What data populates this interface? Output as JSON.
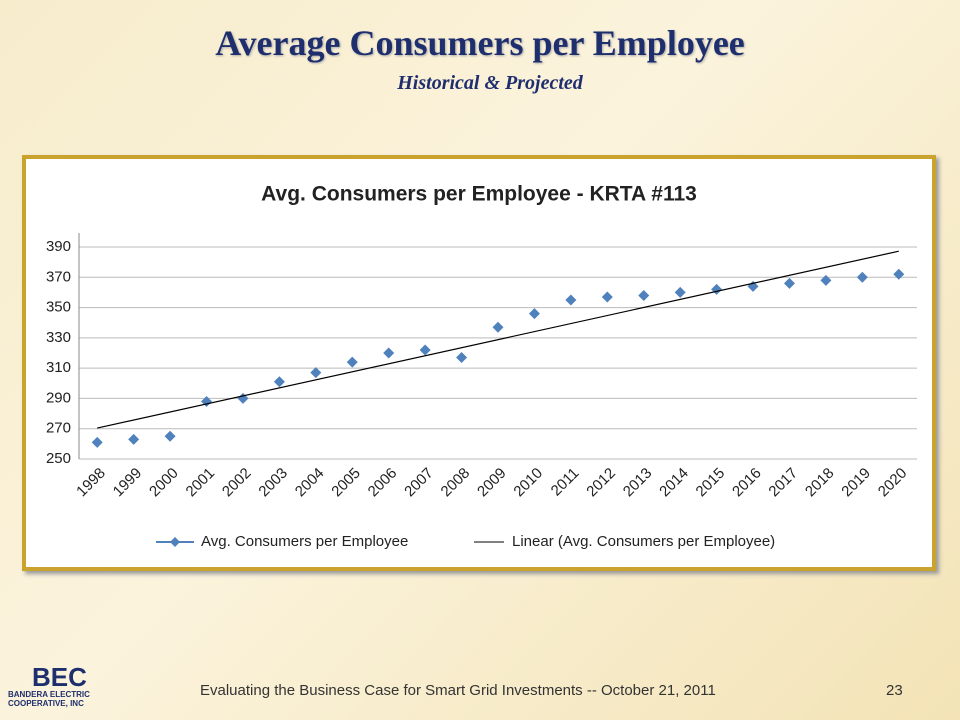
{
  "slide": {
    "title": "Average Consumers per Employee",
    "subtitle": "Historical & Projected",
    "footer": "Evaluating the Business Case for Smart Grid Investments -- October 21, 2011",
    "page": "23",
    "logo": {
      "mark": "BEC",
      "line1": "BANDERA ELECTRIC",
      "line2": "COOPERATIVE, INC"
    }
  },
  "chart_data": {
    "type": "scatter",
    "title": "Avg. Consumers per Employee - KRTA #113",
    "categories": [
      "1998",
      "1999",
      "2000",
      "2001",
      "2002",
      "2003",
      "2004",
      "2005",
      "2006",
      "2007",
      "2008",
      "2009",
      "2010",
      "2011",
      "2012",
      "2013",
      "2014",
      "2015",
      "2016",
      "2017",
      "2018",
      "2019",
      "2020"
    ],
    "series": [
      {
        "name": "Avg. Consumers per Employee",
        "color": "#4f81bd",
        "values": [
          261,
          263,
          265,
          288,
          290,
          301,
          307,
          314,
          320,
          322,
          317,
          337,
          346,
          355,
          357,
          358,
          360,
          362,
          364,
          366,
          368,
          370,
          372
        ]
      }
    ],
    "trendline": {
      "type": "linear",
      "name": "Linear (Avg. Consumers per Employee)",
      "color": "#000000"
    },
    "ylim": [
      250,
      390
    ],
    "yticks": [
      250,
      270,
      290,
      310,
      330,
      350,
      370,
      390
    ],
    "grid": true,
    "legend": "bottom"
  }
}
